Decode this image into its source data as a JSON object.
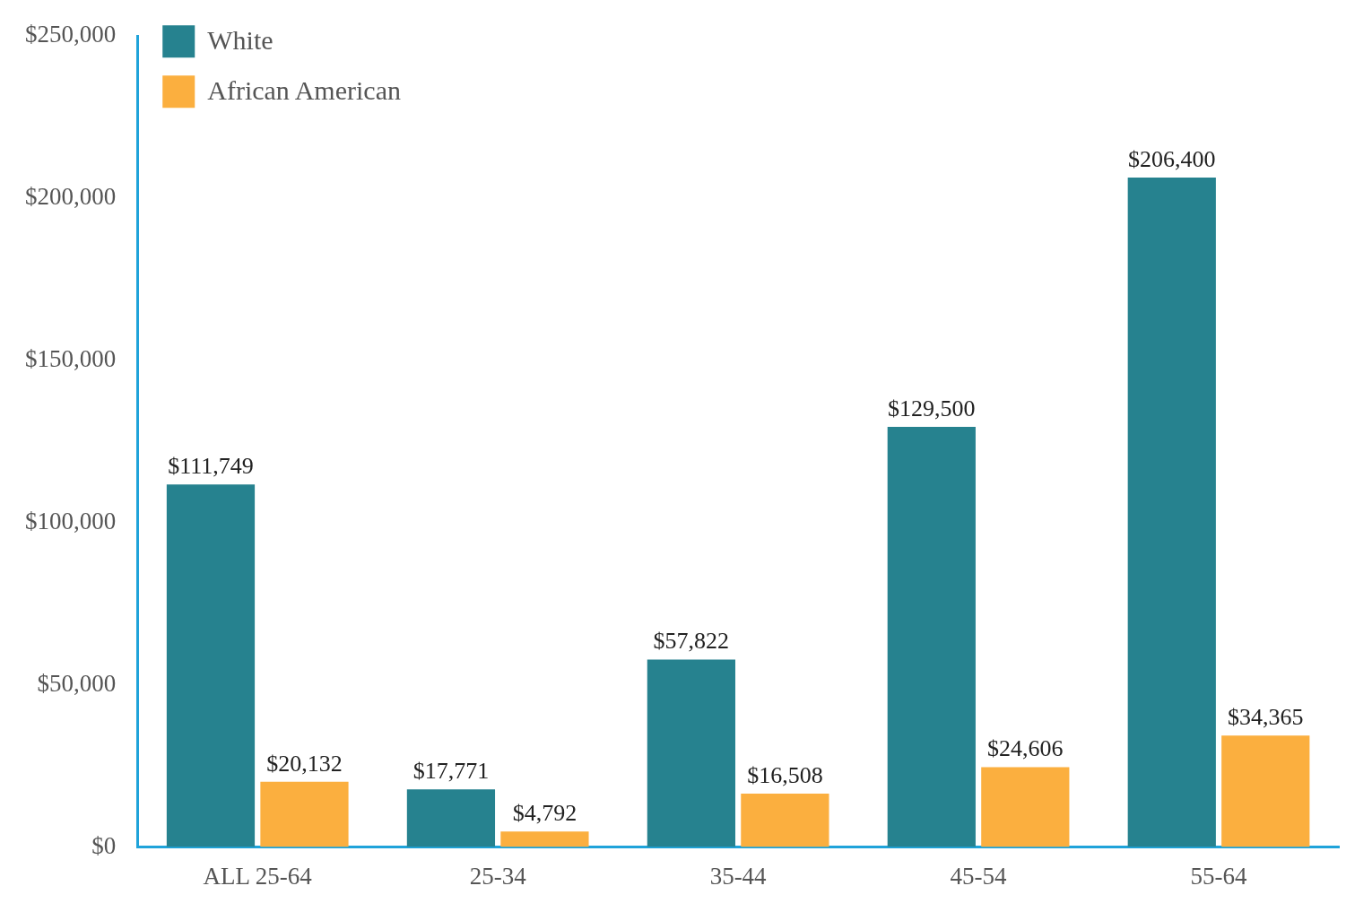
{
  "chart_data": {
    "type": "bar",
    "categories": [
      "ALL 25-64",
      "25-34",
      "35-44",
      "45-54",
      "55-64"
    ],
    "series": [
      {
        "name": "White",
        "color": "#26828f",
        "values": [
          111749,
          17771,
          57822,
          129500,
          206400
        ],
        "value_labels": [
          "$111,749",
          "$17,771",
          "$57,822",
          "$129,500",
          "$206,400"
        ]
      },
      {
        "name": "African American",
        "color": "#fbaf3f",
        "values": [
          20132,
          4792,
          16508,
          24606,
          34365
        ],
        "value_labels": [
          "$20,132",
          "$4,792",
          "$16,508",
          "$24,606",
          "$34,365"
        ]
      }
    ],
    "ylim": [
      0,
      250000
    ],
    "yticks": [
      {
        "value": 0,
        "label": "$0"
      },
      {
        "value": 50000,
        "label": "$50,000"
      },
      {
        "value": 100000,
        "label": "$100,000"
      },
      {
        "value": 150000,
        "label": "$150,000"
      },
      {
        "value": 200000,
        "label": "$200,000"
      },
      {
        "value": 250000,
        "label": "$250,000"
      }
    ],
    "legend": "top left"
  }
}
